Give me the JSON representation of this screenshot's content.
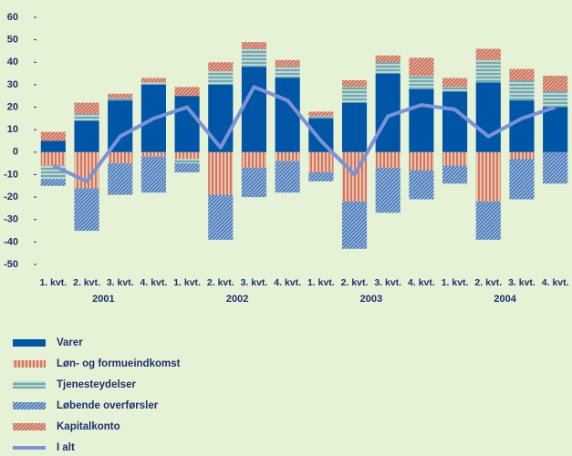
{
  "chart_data": {
    "type": "bar",
    "stacked": true,
    "categories": [
      "1. kvt.",
      "2. kvt.",
      "3. kvt.",
      "4. kvt.",
      "1. kvt.",
      "2. kvt.",
      "3. kvt.",
      "4. kvt.",
      "1. kvt.",
      "2. kvt.",
      "3. kvt.",
      "4. kvt.",
      "1. kvt.",
      "2. kvt.",
      "3. kvt.",
      "4. kvt."
    ],
    "year_labels": [
      "2001",
      "2002",
      "2003",
      "2004"
    ],
    "ylim": [
      -50,
      60
    ],
    "yticks": [
      -50,
      -40,
      -30,
      -20,
      -10,
      0,
      10,
      20,
      30,
      40,
      50,
      60
    ],
    "series": [
      {
        "name": "Varer",
        "color": "#0056a6",
        "pattern": "solid",
        "values": [
          5,
          14,
          23,
          30,
          25,
          30,
          38,
          33,
          15,
          22,
          35,
          28,
          27,
          31,
          23,
          20
        ]
      },
      {
        "name": "Løn- og formueindkomst",
        "color": "#d9604e",
        "pattern": "vertical",
        "values": [
          -6,
          -16,
          -5,
          -2,
          -3,
          -19,
          -7,
          -4,
          -9,
          -22,
          -7,
          -8,
          -6,
          -22,
          -3,
          0
        ]
      },
      {
        "name": "Tjenesteydelser",
        "color": "#5c9cb0",
        "pattern": "horizontal",
        "values": [
          -6,
          3,
          1,
          1,
          -2,
          6,
          8,
          5,
          1,
          7,
          5,
          6,
          2,
          10,
          9,
          7
        ]
      },
      {
        "name": "Løbende overførsler",
        "color": "#3d6fc4",
        "pattern": "diagonal",
        "values": [
          -3,
          -19,
          -14,
          -16,
          -4,
          -20,
          -13,
          -14,
          -4,
          -21,
          -20,
          -13,
          -8,
          -17,
          -18,
          -14
        ]
      },
      {
        "name": "Kapitalkonto",
        "color": "#d0604e",
        "pattern": "diagonal",
        "values": [
          4,
          5,
          2,
          2,
          4,
          4,
          3,
          3,
          2,
          3,
          3,
          8,
          4,
          5,
          5,
          7
        ]
      },
      {
        "name": "I alt",
        "color": "#7b93d6",
        "type": "line",
        "values": [
          -6,
          -13,
          7,
          15,
          20,
          2,
          29,
          23,
          5,
          -10,
          16,
          21,
          19,
          7,
          15,
          20
        ]
      }
    ]
  }
}
